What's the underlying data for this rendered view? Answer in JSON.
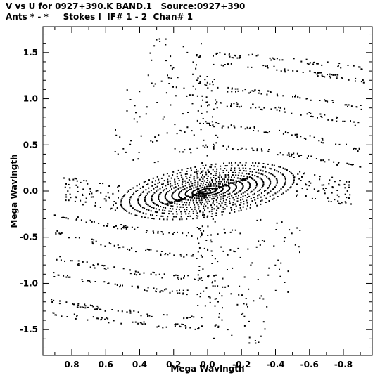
{
  "header": {
    "line1": "V vs U for 0927+390.K BAND.1   Source:0927+390",
    "line2": "Ants * - *     Stokes I  IF# 1 - 2  Chan# 1"
  },
  "chart_data": {
    "type": "scatter",
    "xlabel": "Mega Wavlngth",
    "ylabel": "Mega Wavlngth",
    "xlim": [
      0.97,
      -0.97
    ],
    "ylim": [
      -1.78,
      1.78
    ],
    "x_ticks": [
      0.8,
      0.6,
      0.4,
      0.2,
      0.0,
      -0.2,
      -0.4,
      -0.6,
      -0.8
    ],
    "x_tick_labels": [
      "0.8",
      "0.6",
      "0.4",
      "0.2",
      "0.0",
      "-0.2",
      "-0.4",
      "-0.6",
      "-0.8"
    ],
    "y_ticks": [
      1.5,
      1.0,
      0.5,
      0.0,
      -0.5,
      -1.0,
      -1.5
    ],
    "y_tick_labels": [
      "1.5",
      "1.0",
      "0.5",
      "0.0",
      "-0.5",
      "-1.0",
      "-1.5"
    ],
    "grid": false,
    "marker_color": "#000000",
    "series": [
      {
        "description_of_distribution": "uv coverage: concentric elliptical tracks with point-symmetric (u,v)/(-u,-v) pairs",
        "points_generated": true
      }
    ]
  }
}
